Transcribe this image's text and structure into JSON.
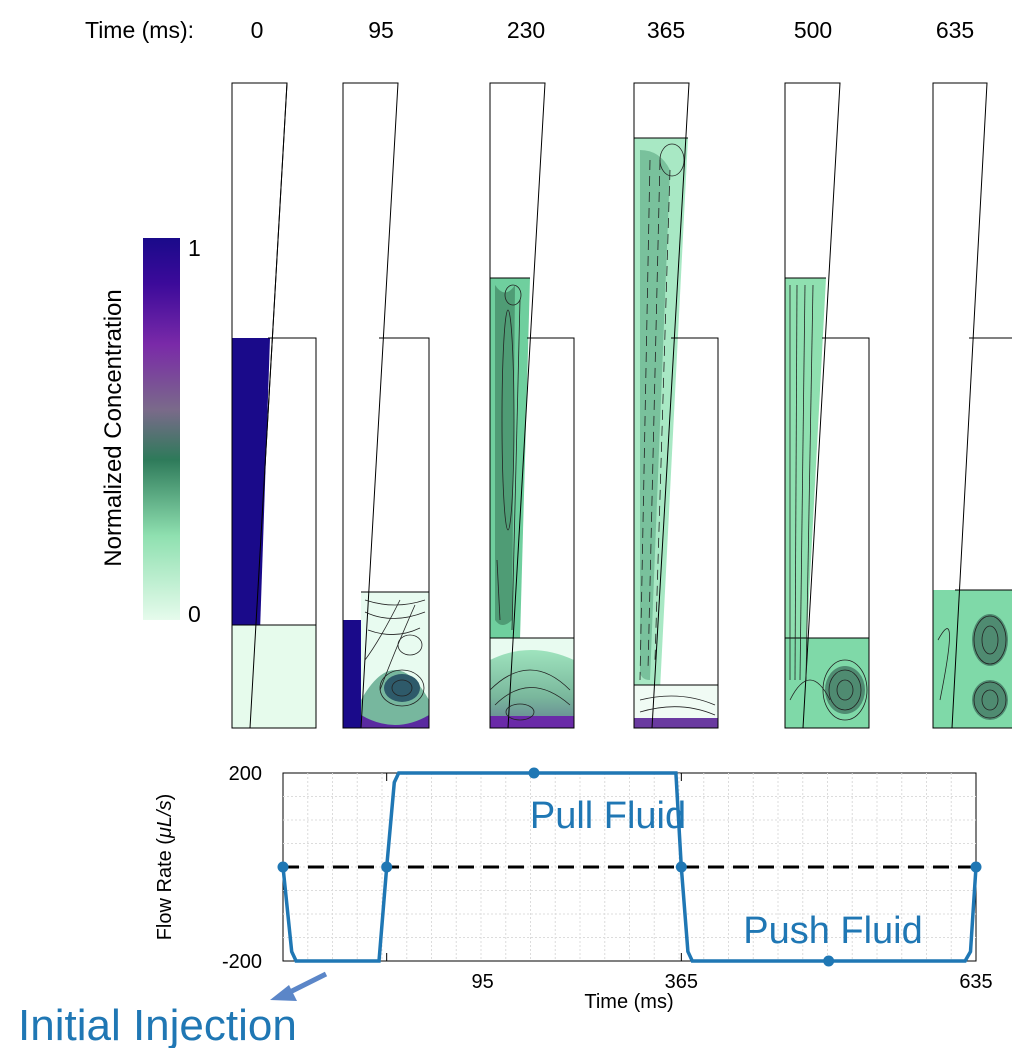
{
  "timeline": {
    "prefix": "Time (ms):",
    "times": [
      "0",
      "95",
      "230",
      "365",
      "500",
      "635"
    ]
  },
  "colorbar": {
    "label": "Normalized Concentration",
    "max_label": "1",
    "min_label": "0",
    "colors": [
      "#e6fbec",
      "#8fe0b0",
      "#2e7a5a",
      "#7a6a8a",
      "#7a2aa8",
      "#3c0a9a",
      "#1a0a8a"
    ]
  },
  "colors": {
    "accent": "#1f77b4",
    "fill_high": "#1a0a8a",
    "fill_low": "#e6fbec",
    "fill_mid": "#7fd9a8"
  },
  "annotation": {
    "text": "Initial Injection",
    "arrow_color": "#5b86c8"
  },
  "chart_data": {
    "type": "line",
    "title": "",
    "xlabel": "Time (ms)",
    "ylabel_main": "Flow Rate (",
    "ylabel_unit": "μL/s",
    "ylabel_close": ")",
    "xlim": [
      0,
      635
    ],
    "ylim": [
      -200,
      200
    ],
    "xticks": [
      95,
      365,
      635
    ],
    "yticks": [
      -200,
      200
    ],
    "grid": true,
    "series": [
      {
        "name": "flow",
        "x": [
          0,
          8,
          12,
          88,
          95,
          102,
          106,
          360,
          365,
          371,
          375,
          625,
          630,
          635
        ],
        "y": [
          0,
          -180,
          -200,
          -200,
          0,
          180,
          200,
          200,
          0,
          -180,
          -200,
          -200,
          -180,
          0
        ]
      }
    ],
    "markers": [
      {
        "x": 0,
        "y": 0
      },
      {
        "x": 95,
        "y": 0
      },
      {
        "x": 230,
        "y": 200
      },
      {
        "x": 365,
        "y": 0
      },
      {
        "x": 500,
        "y": -200
      },
      {
        "x": 635,
        "y": 0
      }
    ],
    "reference_line": {
      "y": 0,
      "style": "dashed"
    },
    "annotations": [
      {
        "text": "Pull Fluid"
      },
      {
        "text": "Push Fluid"
      }
    ]
  }
}
